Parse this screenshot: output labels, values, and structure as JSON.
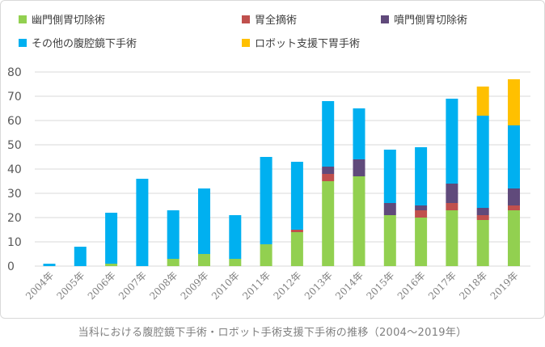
{
  "caption": "当科における腹腔鏡下手術・ロボット手術支援下手術の推移（2004～2019年）",
  "chart_data": {
    "type": "bar",
    "stacked": true,
    "categories": [
      "2004年",
      "2005年",
      "2006年",
      "2007年",
      "2008年",
      "2009年",
      "2010年",
      "2011年",
      "2012年",
      "2013年",
      "2014年",
      "2015年",
      "2016年",
      "2017年",
      "2018年",
      "2019年"
    ],
    "series": [
      {
        "name": "幽門側胃切除術",
        "color": "#92d050",
        "values": [
          0,
          0,
          1,
          0,
          3,
          5,
          3,
          9,
          14,
          35,
          37,
          21,
          20,
          23,
          19,
          23
        ]
      },
      {
        "name": "胃全摘術",
        "color": "#c0504d",
        "values": [
          0,
          0,
          0,
          0,
          0,
          0,
          0,
          0,
          1,
          3,
          0,
          0,
          3,
          3,
          2,
          2
        ]
      },
      {
        "name": "噴門側胃切除術",
        "color": "#604a7b",
        "values": [
          0,
          0,
          0,
          0,
          0,
          0,
          0,
          0,
          0,
          3,
          7,
          5,
          2,
          8,
          3,
          7
        ]
      },
      {
        "name": "その他の腹腔鏡下手術",
        "color": "#00b0f0",
        "values": [
          1,
          8,
          21,
          36,
          20,
          27,
          18,
          36,
          28,
          27,
          21,
          22,
          24,
          35,
          38,
          26
        ]
      },
      {
        "name": "ロボット支援下胃手術",
        "color": "#ffc000",
        "values": [
          0,
          0,
          0,
          0,
          0,
          0,
          0,
          0,
          0,
          0,
          0,
          0,
          0,
          0,
          12,
          19
        ]
      }
    ],
    "ylim": [
      0,
      80
    ],
    "yticks": [
      0,
      10,
      20,
      30,
      40,
      50,
      60,
      70,
      80
    ],
    "grid": true,
    "legend": "top"
  }
}
